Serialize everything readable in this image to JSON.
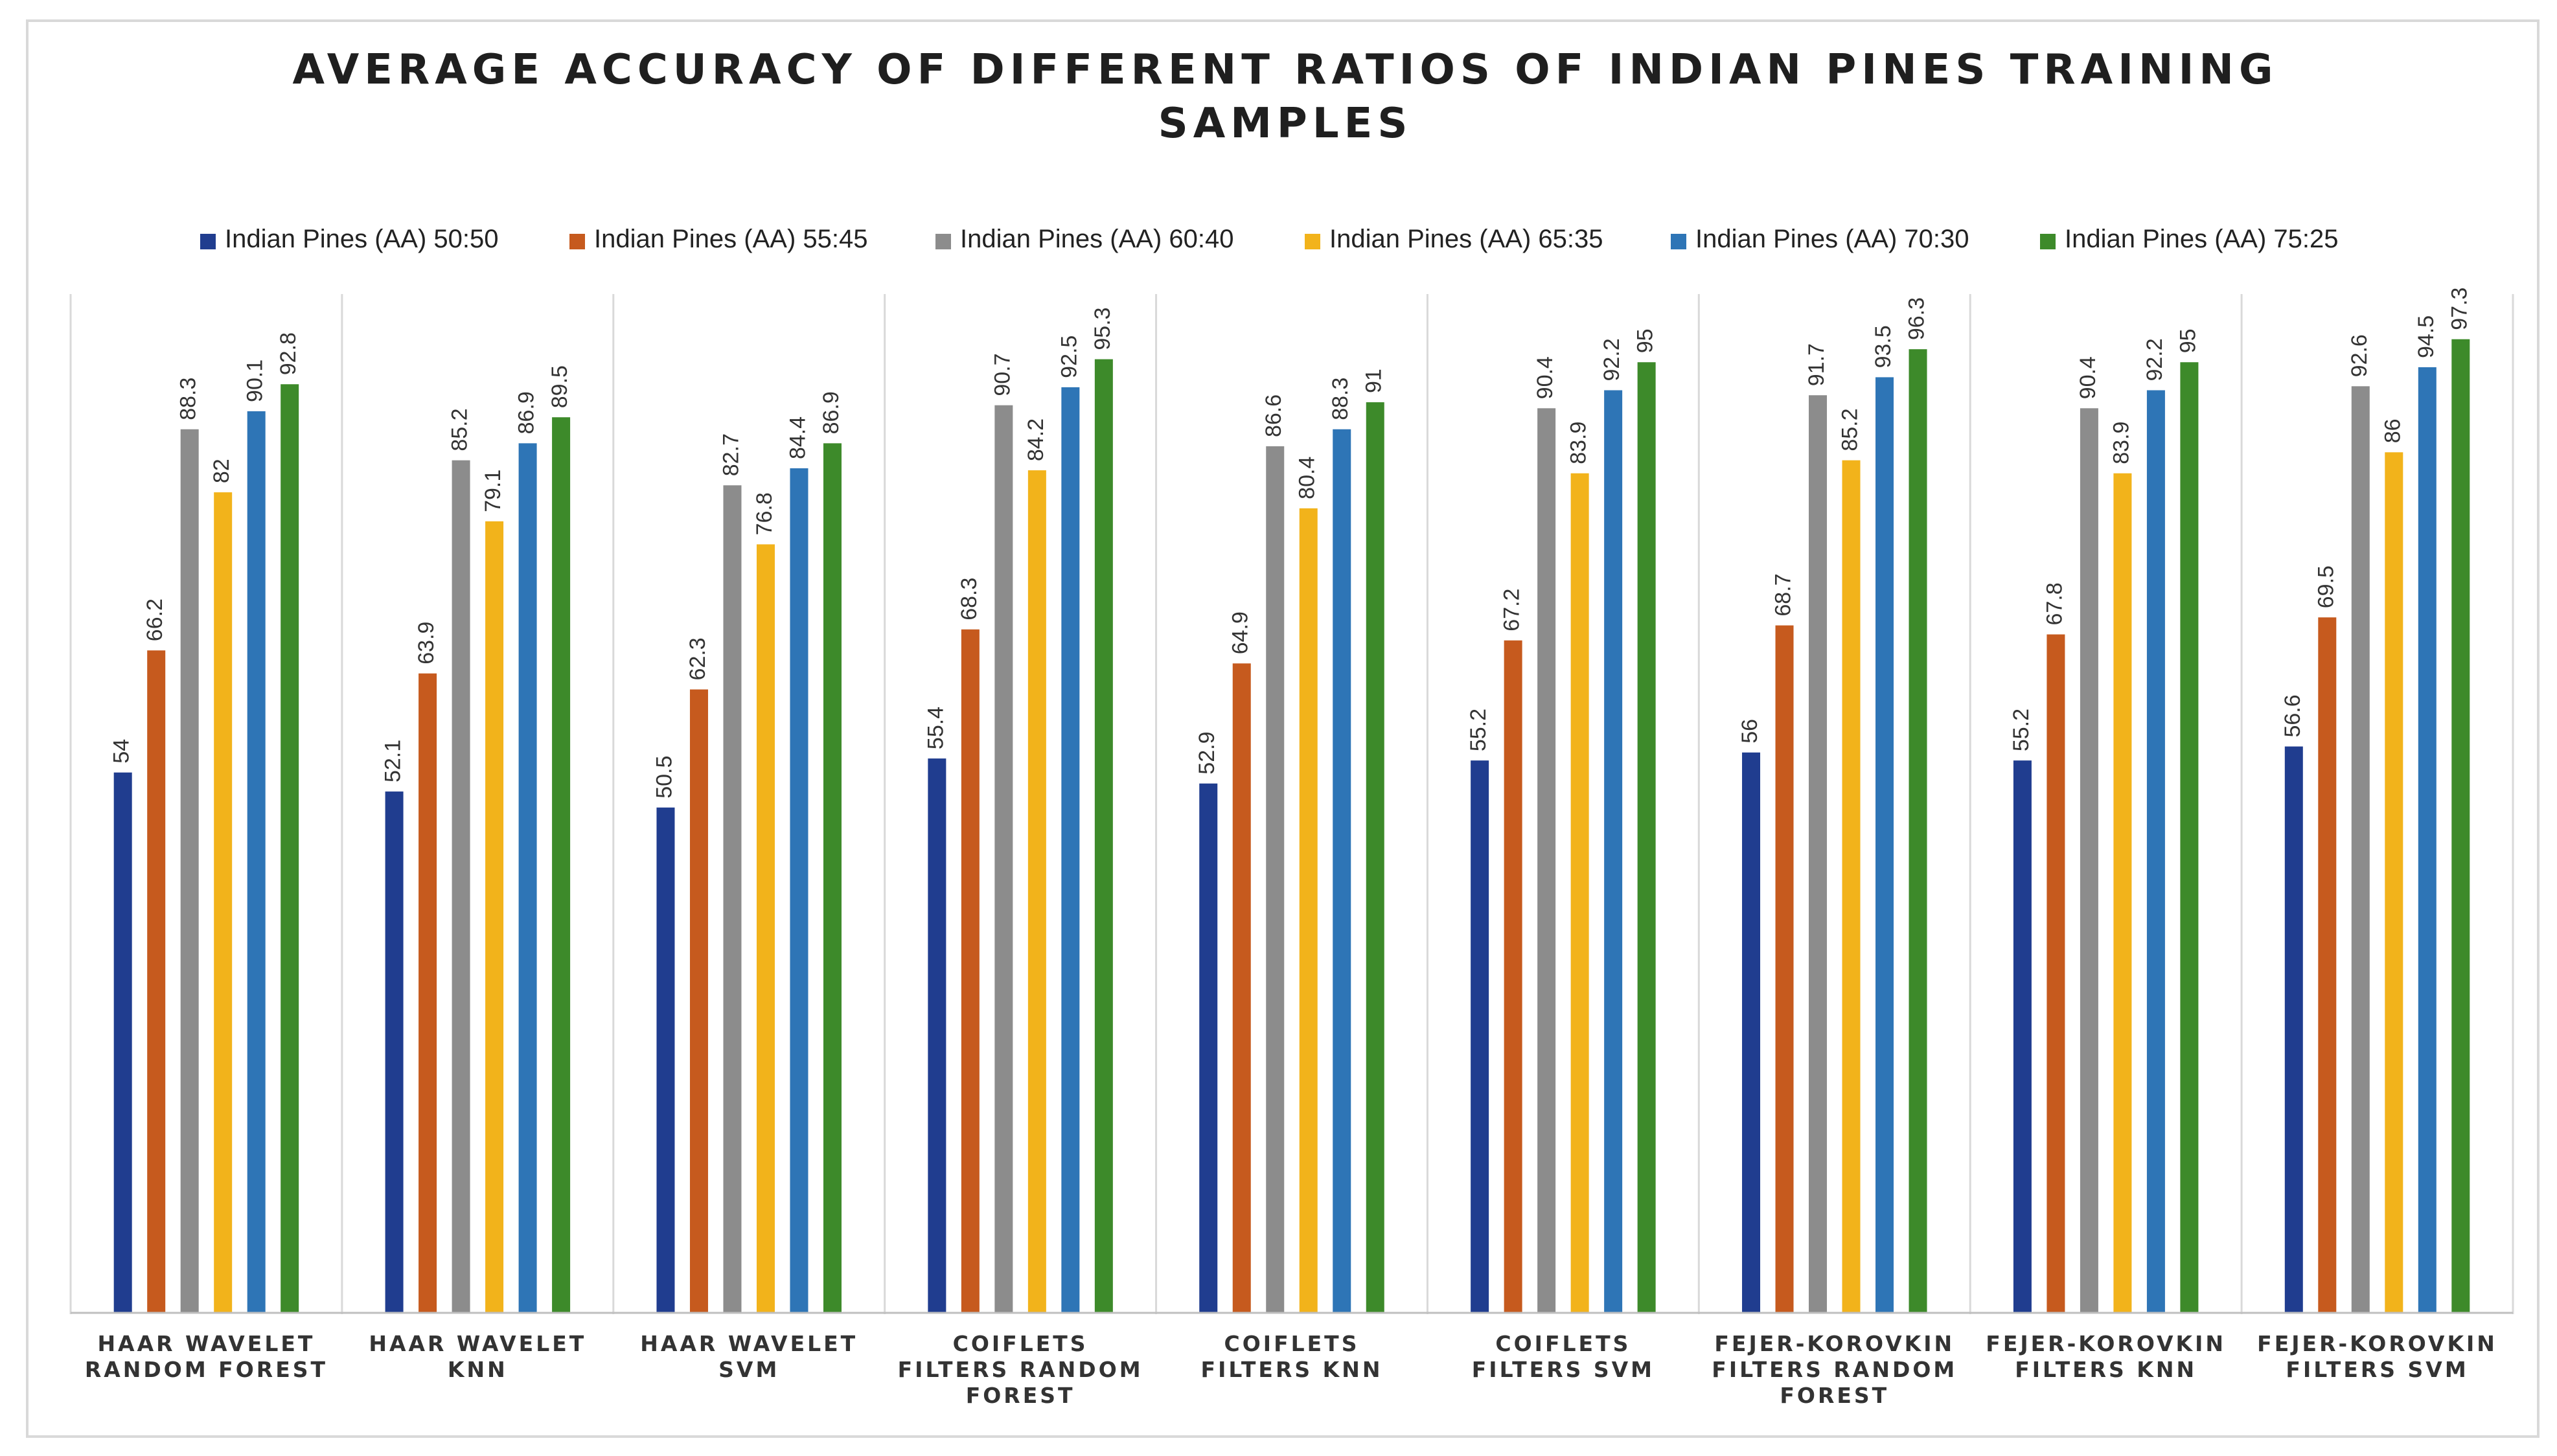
{
  "chart_data": {
    "type": "bar",
    "title_lines": [
      "AVERAGE ACCURACY OF DIFFERENT RATIOS OF INDIAN PINES TRAINING",
      "SAMPLES"
    ],
    "xlabel": "",
    "ylabel": "",
    "ylim": [
      0,
      100
    ],
    "grid": false,
    "legend_position": "top",
    "categories": [
      [
        "HAAR WAVELET",
        "RANDOM FOREST"
      ],
      [
        "HAAR WAVELET",
        "KNN"
      ],
      [
        "HAAR WAVELET",
        "SVM"
      ],
      [
        "COIFLETS",
        "FILTERS RANDOM",
        "FOREST"
      ],
      [
        "COIFLETS",
        "FILTERS KNN"
      ],
      [
        "COIFLETS",
        "FILTERS SVM"
      ],
      [
        "FEJER-KOROVKIN",
        "FILTERS RANDOM",
        "FOREST"
      ],
      [
        "FEJER-KOROVKIN",
        "FILTERS KNN"
      ],
      [
        "FEJER-KOROVKIN",
        "FILTERS SVM"
      ]
    ],
    "series": [
      {
        "name": "Indian Pines (AA) 50:50",
        "color": "#203d8f",
        "values": [
          54,
          52.1,
          50.5,
          55.4,
          52.9,
          55.2,
          56,
          55.2,
          56.6
        ]
      },
      {
        "name": "Indian Pines (AA) 55:45",
        "color": "#c65a1e",
        "values": [
          66.2,
          63.9,
          62.3,
          68.3,
          64.9,
          67.2,
          68.7,
          67.8,
          69.5
        ]
      },
      {
        "name": "Indian Pines (AA) 60:40",
        "color": "#8c8c8c",
        "values": [
          88.3,
          85.2,
          82.7,
          90.7,
          86.6,
          90.4,
          91.7,
          90.4,
          92.6
        ]
      },
      {
        "name": "Indian Pines (AA) 65:35",
        "color": "#f2b31b",
        "values": [
          82,
          79.1,
          76.8,
          84.2,
          80.4,
          83.9,
          85.2,
          83.9,
          86
        ]
      },
      {
        "name": "Indian Pines (AA) 70:30",
        "color": "#2e75b6",
        "values": [
          90.1,
          86.9,
          84.4,
          92.5,
          88.3,
          92.2,
          93.5,
          92.2,
          94.5
        ]
      },
      {
        "name": "Indian Pines (AA) 75:25",
        "color": "#3d8a2a",
        "values": [
          92.8,
          89.5,
          86.9,
          95.3,
          91,
          95,
          96.3,
          95,
          97.3
        ]
      }
    ]
  }
}
